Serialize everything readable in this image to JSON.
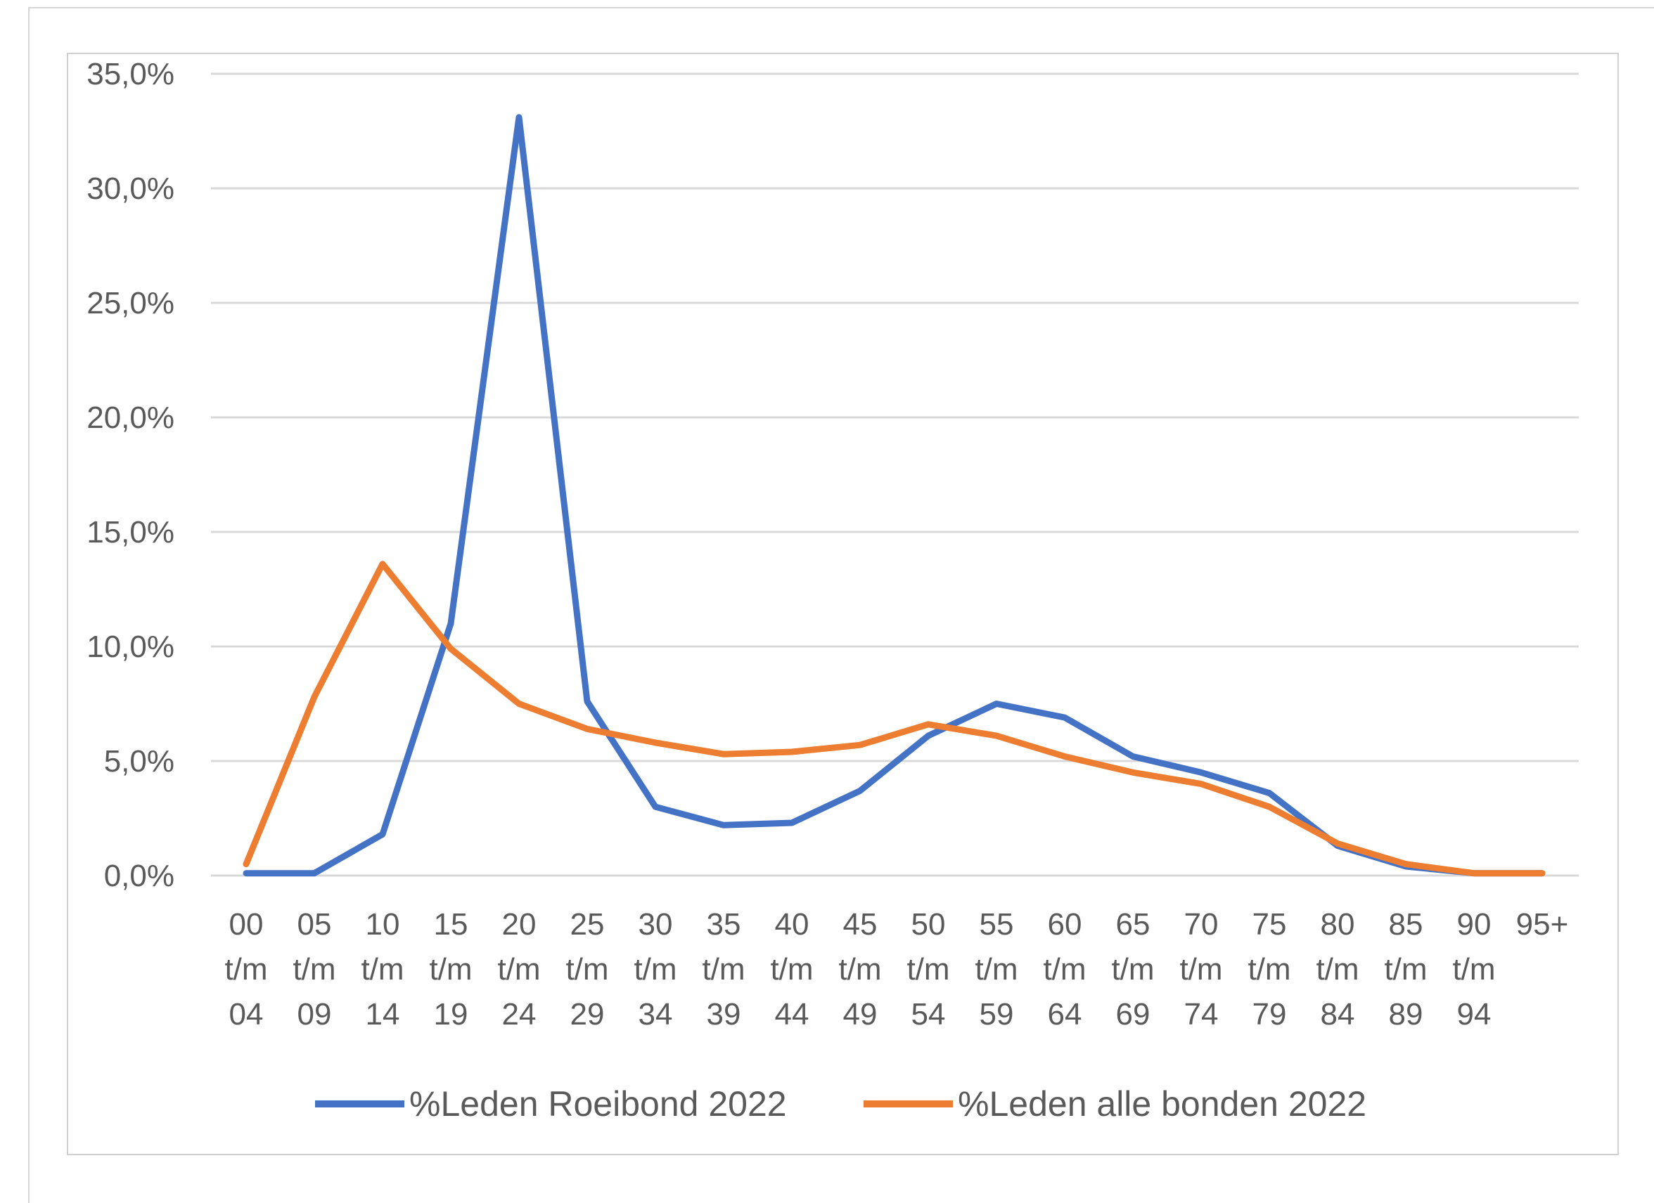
{
  "chart_data": {
    "type": "line",
    "categories": [
      [
        "00",
        "t/m",
        "04"
      ],
      [
        "05",
        "t/m",
        "09"
      ],
      [
        "10",
        "t/m",
        "14"
      ],
      [
        "15",
        "t/m",
        "19"
      ],
      [
        "20",
        "t/m",
        "24"
      ],
      [
        "25",
        "t/m",
        "29"
      ],
      [
        "30",
        "t/m",
        "34"
      ],
      [
        "35",
        "t/m",
        "39"
      ],
      [
        "40",
        "t/m",
        "44"
      ],
      [
        "45",
        "t/m",
        "49"
      ],
      [
        "50",
        "t/m",
        "54"
      ],
      [
        "55",
        "t/m",
        "59"
      ],
      [
        "60",
        "t/m",
        "64"
      ],
      [
        "65",
        "t/m",
        "69"
      ],
      [
        "70",
        "t/m",
        "74"
      ],
      [
        "75",
        "t/m",
        "79"
      ],
      [
        "80",
        "t/m",
        "84"
      ],
      [
        "85",
        "t/m",
        "89"
      ],
      [
        "90",
        "t/m",
        "94"
      ],
      [
        "95+"
      ]
    ],
    "series": [
      {
        "name": "%Leden Roeibond 2022",
        "color": "#4472C4",
        "values": [
          0.1,
          0.1,
          1.8,
          11.0,
          33.1,
          7.6,
          3.0,
          2.2,
          2.3,
          3.7,
          6.1,
          7.5,
          6.9,
          5.2,
          4.5,
          3.6,
          1.3,
          0.4,
          0.1,
          0.1
        ]
      },
      {
        "name": "%Leden alle bonden 2022",
        "color": "#ED7D31",
        "values": [
          0.5,
          7.8,
          13.6,
          9.9,
          7.5,
          6.4,
          5.8,
          5.3,
          5.4,
          5.7,
          6.6,
          6.1,
          5.2,
          4.5,
          4.0,
          3.0,
          1.4,
          0.5,
          0.1,
          0.1
        ]
      }
    ],
    "y_ticks": [
      "0,0%",
      "5,0%",
      "10,0%",
      "15,0%",
      "20,0%",
      "25,0%",
      "30,0%",
      "35,0%"
    ],
    "ylim": [
      0,
      35
    ],
    "grid": true,
    "legend_position": "bottom",
    "gridline_color": "#d9d9d9"
  }
}
